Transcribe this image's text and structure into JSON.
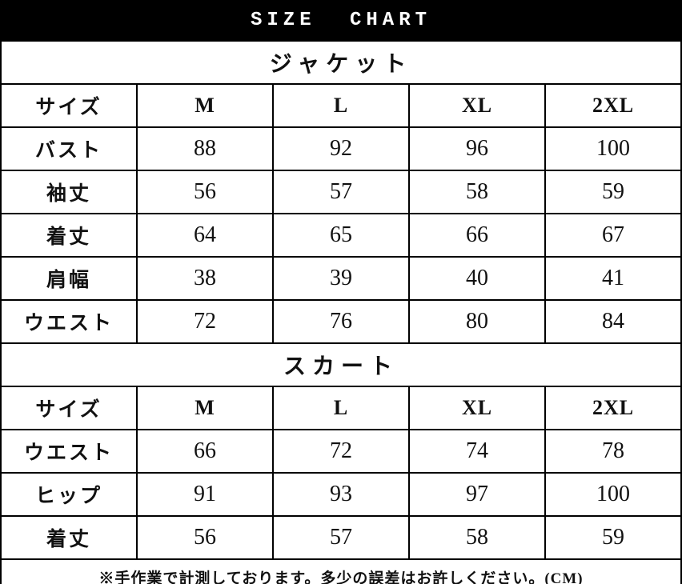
{
  "header": {
    "title": "SIZE CHART"
  },
  "chart_data": [
    {
      "type": "table",
      "title": "ジャケット",
      "columns": [
        "サイズ",
        "M",
        "L",
        "XL",
        "2XL"
      ],
      "rows": [
        [
          "バスト",
          88,
          92,
          96,
          100
        ],
        [
          "袖丈",
          56,
          57,
          58,
          59
        ],
        [
          "着丈",
          64,
          65,
          66,
          67
        ],
        [
          "肩幅",
          38,
          39,
          40,
          41
        ],
        [
          "ウエスト",
          72,
          76,
          80,
          84
        ]
      ],
      "units": "CM"
    },
    {
      "type": "table",
      "title": "スカート",
      "columns": [
        "サイズ",
        "M",
        "L",
        "XL",
        "2XL"
      ],
      "rows": [
        [
          "ウエスト",
          66,
          72,
          74,
          78
        ],
        [
          "ヒップ",
          91,
          93,
          97,
          100
        ],
        [
          "着丈",
          56,
          57,
          58,
          59
        ]
      ],
      "units": "CM"
    }
  ],
  "footer": {
    "note": "※手作業で計測しております。多少の誤差はお許しください。(CM)"
  },
  "colors": {
    "header_bg": "#000000",
    "header_text": "#ffffff",
    "border": "#000000",
    "text": "#111111",
    "background": "#ffffff"
  }
}
